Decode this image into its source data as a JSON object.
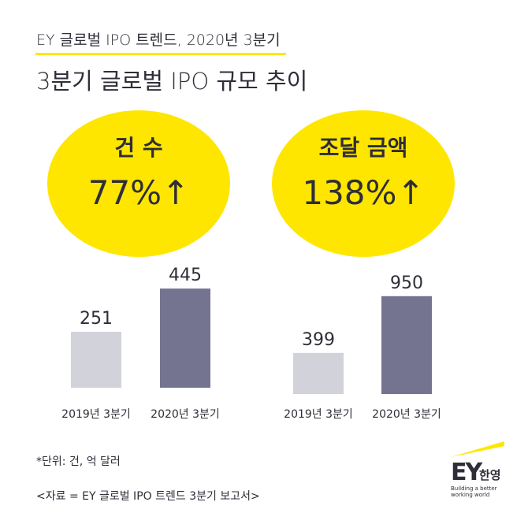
{
  "header": {
    "subtitle": "EY 글로벌 IPO 트렌드, 2020년 3분기",
    "title": "3분기 글로벌 IPO 규모 추이"
  },
  "highlights": [
    {
      "label": "건 수",
      "value": "77%↑"
    },
    {
      "label": "조달 금액",
      "value": "138%↑"
    }
  ],
  "colors": {
    "yellow": "#ffe600",
    "bar_2019": "#d2d2da",
    "bar_2020": "#747490"
  },
  "chart_data": [
    {
      "type": "bar",
      "title": "건 수",
      "categories": [
        "2019년 3분기",
        "2020년 3분기"
      ],
      "values": [
        251,
        445
      ],
      "labels": [
        "251",
        "445"
      ],
      "ylim": [
        0,
        500
      ]
    },
    {
      "type": "bar",
      "title": "조달 금액",
      "categories": [
        "2019년 3분기",
        "2020년 3분기"
      ],
      "values": [
        399,
        950
      ],
      "labels": [
        "399",
        "950"
      ],
      "ylim": [
        0,
        1400
      ]
    }
  ],
  "footer": {
    "note": "*단위: 건, 억 달러",
    "source": "<자료 = EY 글로벌 IPO 트렌드 3분기 보고서>"
  },
  "logo": {
    "brand": "EY",
    "korean": "한영",
    "tagline": "Building a better working world"
  }
}
